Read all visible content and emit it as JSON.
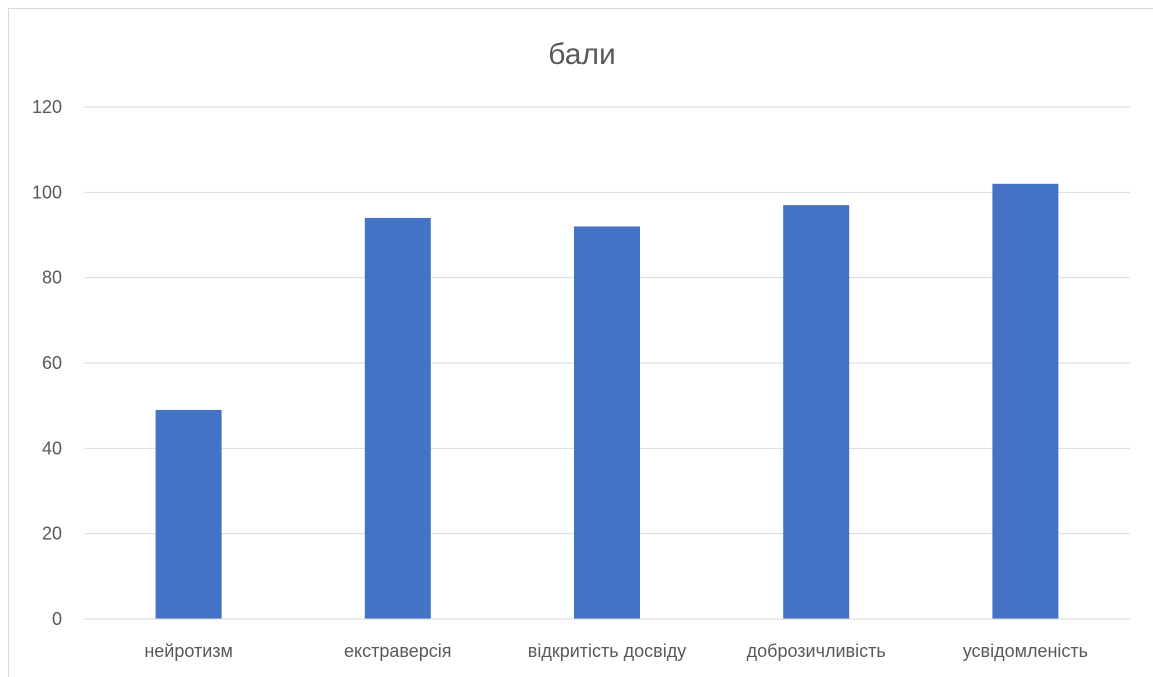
{
  "chart_data": {
    "type": "bar",
    "title": "бали",
    "categories": [
      "нейротизм",
      "екстраверсія",
      "відкритість досвіду",
      "доброзичливість",
      "усвідомленість"
    ],
    "series": [
      {
        "values": [
          49,
          94,
          92,
          97,
          102
        ]
      }
    ],
    "ylim": [
      0,
      120
    ],
    "yticks": [
      0,
      20,
      40,
      60,
      80,
      100,
      120
    ],
    "xlabel": "",
    "ylabel": "",
    "grid": true,
    "legend": "none",
    "bar_color": "#4472c4"
  }
}
